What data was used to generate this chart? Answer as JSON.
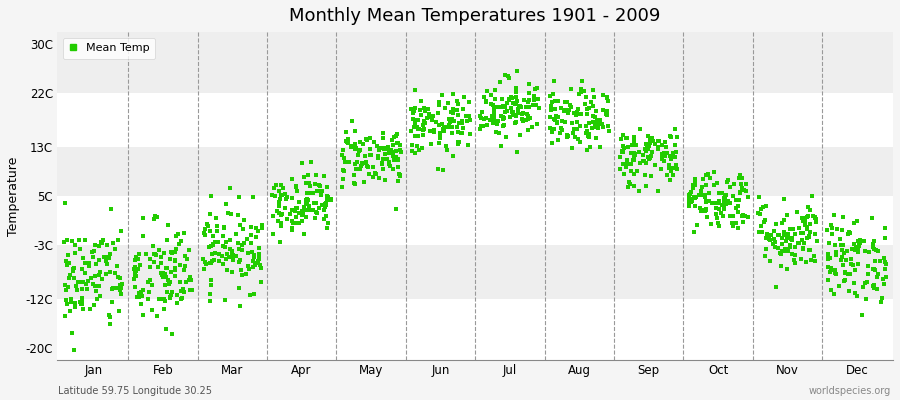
{
  "title": "Monthly Mean Temperatures 1901 - 2009",
  "ylabel": "Temperature",
  "xlabel_months": [
    "Jan",
    "Feb",
    "Mar",
    "Apr",
    "May",
    "Jun",
    "Jul",
    "Aug",
    "Sep",
    "Oct",
    "Nov",
    "Dec"
  ],
  "yticks": [
    -20,
    -12,
    -3,
    5,
    13,
    22,
    30
  ],
  "ytick_labels": [
    "-20C",
    "-12C",
    "-3C",
    "5C",
    "13C",
    "22C",
    "30C"
  ],
  "ylim": [
    -22,
    32
  ],
  "dot_color": "#22CC00",
  "dot_size": 5,
  "fig_bg_color": "#F5F5F5",
  "band_colors": [
    "#FFFFFF",
    "#EEEEEE"
  ],
  "dashed_line_color": "#999999",
  "footer_left": "Latitude 59.75 Longitude 30.25",
  "footer_right": "worldspecies.org",
  "legend_label": "Mean Temp",
  "n_years": 109,
  "monthly_means": [
    -8.5,
    -8.2,
    -3.5,
    4.0,
    11.5,
    16.5,
    19.5,
    17.5,
    11.5,
    4.5,
    -1.5,
    -5.5
  ],
  "monthly_stds": [
    4.5,
    4.5,
    3.5,
    2.5,
    2.5,
    2.5,
    2.5,
    2.5,
    2.5,
    2.5,
    3.0,
    3.5
  ],
  "seed": 42
}
